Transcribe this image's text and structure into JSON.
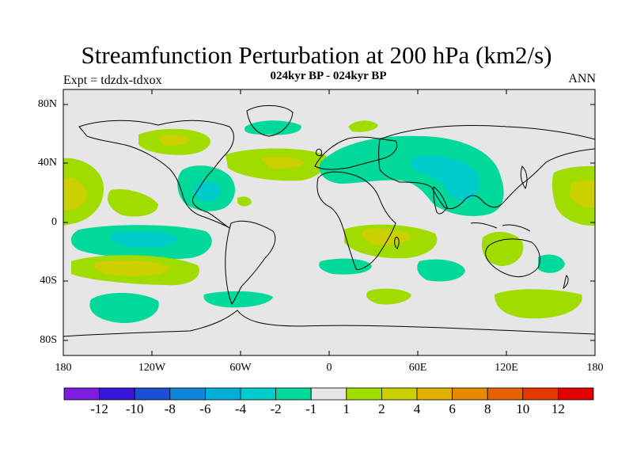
{
  "title": "Streamfunction Perturbation at 200 hPa (km2/s)",
  "subtitle": "024kyr BP - 024kyr BP",
  "expt": "Expt = tdzdx-tdxox",
  "season": "ANN",
  "lat_labels": [
    "80N",
    "40N",
    "0",
    "40S",
    "80S"
  ],
  "lon_labels": [
    "180",
    "120W",
    "60W",
    "0",
    "60E",
    "120E",
    "180"
  ],
  "colorbar": {
    "colors": [
      "#7d1de0",
      "#3a16d9",
      "#1a4fd2",
      "#0f86d8",
      "#00aed6",
      "#00cccc",
      "#00d99a",
      "#e6e6e6",
      "#a1dc00",
      "#cdd000",
      "#dfb000",
      "#e48a00",
      "#e56100",
      "#e33800",
      "#e00000"
    ],
    "labels": [
      "-12",
      "-10",
      "-8",
      "-6",
      "-4",
      "-2",
      "-1",
      "1",
      "2",
      "4",
      "6",
      "8",
      "10",
      "12"
    ]
  },
  "map": {
    "lon_range": [
      -180,
      180
    ],
    "lat_range": [
      -90,
      90
    ],
    "contour_interval": "-12 to 12"
  }
}
